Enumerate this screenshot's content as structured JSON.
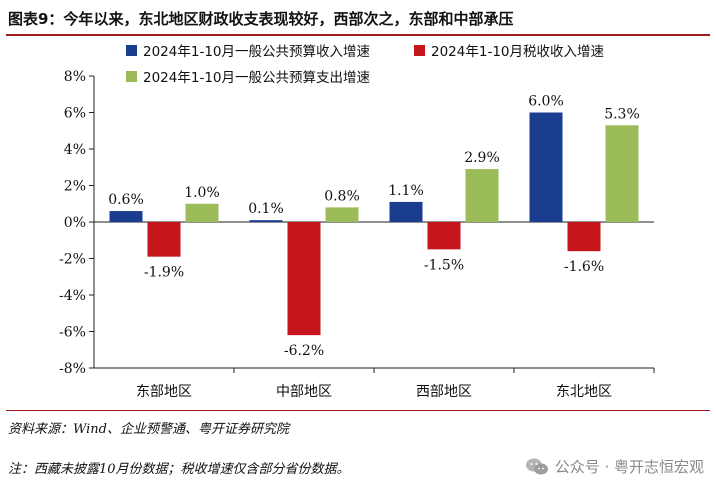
{
  "header": {
    "title": "图表9：今年以来，东北地区财政收支表现较好，西部次之，东部和中部承压"
  },
  "chart_data": {
    "type": "bar",
    "categories": [
      "东部地区",
      "中部地区",
      "西部地区",
      "东北地区"
    ],
    "series": [
      {
        "name": "2024年1-10月一般公共预算收入增速",
        "values": [
          0.6,
          0.1,
          1.1,
          6.0
        ],
        "labels": [
          "0.6%",
          "0.1%",
          "1.1%",
          "6.0%"
        ],
        "color": "#1a3d8f"
      },
      {
        "name": "2024年1-10月税收收入增速",
        "values": [
          -1.9,
          -6.2,
          -1.5,
          -1.6
        ],
        "labels": [
          "-1.9%",
          "-6.2%",
          "-1.5%",
          "-1.6%"
        ],
        "color": "#c4161c"
      },
      {
        "name": "2024年1-10月一般公共预算支出增速",
        "values": [
          1.0,
          0.8,
          2.9,
          5.3
        ],
        "labels": [
          "1.0%",
          "0.8%",
          "2.9%",
          "5.3%"
        ],
        "color": "#9bbb59"
      }
    ],
    "ylim": [
      -8,
      8
    ],
    "yticks": [
      8,
      6,
      4,
      2,
      0,
      -2,
      -4,
      -6,
      -8
    ],
    "ytick_labels": [
      "8%",
      "6%",
      "4%",
      "2%",
      "0%",
      "-2%",
      "-4%",
      "-6%",
      "-8%"
    ],
    "legend_position": "top",
    "grid": false
  },
  "footer": {
    "source": "资料来源：Wind、企业预警通、粤开证券研究院",
    "note": "注：西藏未披露10月份数据；税收增速仅含部分省份数据。",
    "watermark": "公众号 · 粤开志恒宏观",
    "watermark_icon": "wechat-icon"
  }
}
